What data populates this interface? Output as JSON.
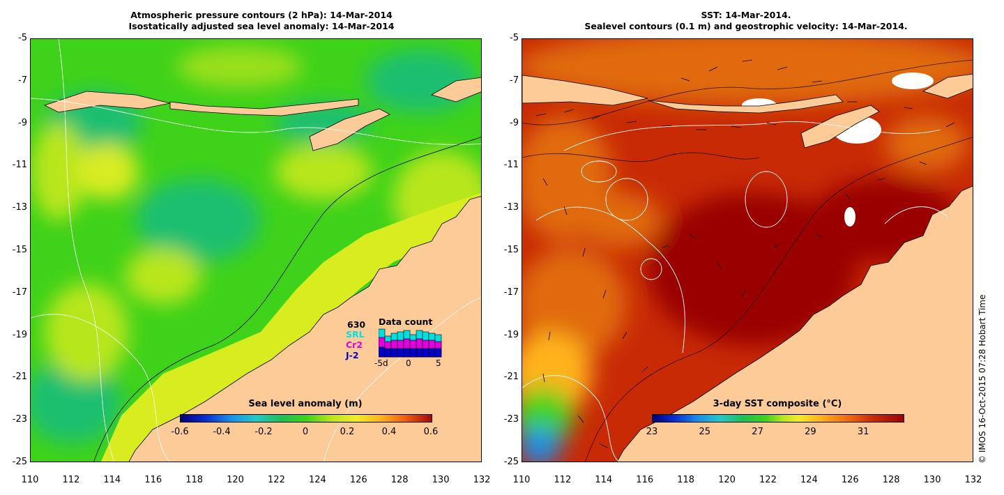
{
  "left_panel": {
    "title_line1": "Atmospheric pressure contours (2 hPa): 14-Mar-2014",
    "title_line2": "Isostatically adjusted sea level anomaly: 14-Mar-2014",
    "colorbar": {
      "title": "Sea level anomaly (m)",
      "ticks": [
        "-0.6",
        "-0.4",
        "-0.2",
        "0",
        "0.2",
        "0.4",
        "0.6"
      ],
      "range": [
        -0.6,
        0.6
      ]
    },
    "data_count": {
      "title": "Data count",
      "total": "630",
      "labels": [
        "SRL",
        "Cr2",
        "J-2"
      ],
      "label_colors": [
        "#00e0e0",
        "#e000e0",
        "#0000c8"
      ],
      "axis_ticks": [
        "-5d",
        "0",
        "5"
      ]
    }
  },
  "right_panel": {
    "title_line1": "SST: 14-Mar-2014.",
    "title_line2": "Sealevel contours (0.1 m) and geostrophic velocity: 14-Mar-2014.",
    "colorbar": {
      "title": "3-day SST composite (°C)",
      "ticks": [
        "23",
        "25",
        "27",
        "29",
        "31"
      ],
      "range": [
        23,
        32.5
      ]
    }
  },
  "axes": {
    "lat_ticks": [
      "-5",
      "-7",
      "-9",
      "-11",
      "-13",
      "-15",
      "-17",
      "-19",
      "-21",
      "-23",
      "-25"
    ],
    "lon_ticks": [
      "110",
      "112",
      "114",
      "116",
      "118",
      "120",
      "122",
      "124",
      "126",
      "128",
      "130",
      "132"
    ],
    "lat_range": [
      -25,
      -5
    ],
    "lon_range": [
      110,
      132
    ]
  },
  "copyright": "© IMOS 16-Oct-2015 07:28 Hobart Time",
  "colors": {
    "land": "#fccb98",
    "sla_base": "#3fd21a",
    "sst_base": "#c82a06",
    "sst_hot": "#9a0505"
  }
}
